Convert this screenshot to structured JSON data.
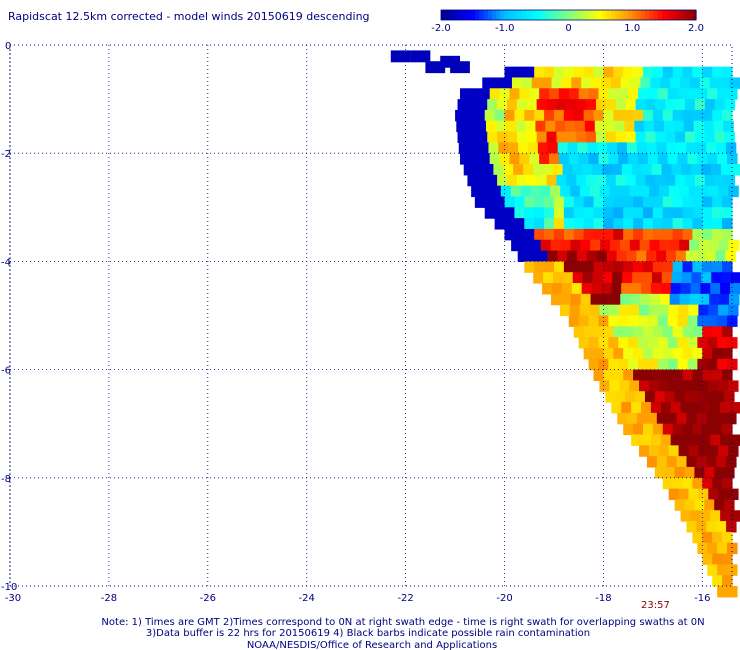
{
  "chart_data": {
    "type": "heatmap",
    "title": "Rapidscat 12.5km corrected - model winds 20150619 descending",
    "colorbar": {
      "min": -2.0,
      "max": 2.0,
      "ticks": [
        {
          "value": -2.0,
          "label": "-2.0"
        },
        {
          "value": -1.0,
          "label": "-1.0"
        },
        {
          "value": 0,
          "label": "0"
        },
        {
          "value": 1.0,
          "label": "1.0"
        },
        {
          "value": 2.0,
          "label": "2.0"
        }
      ],
      "colors": [
        "#00008b",
        "#0000ff",
        "#00bfff",
        "#00ffff",
        "#7fff7f",
        "#ffff00",
        "#ff8c00",
        "#ff0000",
        "#8b0000"
      ]
    },
    "xlim": [
      -30,
      -15.4
    ],
    "ylim": [
      -10,
      0
    ],
    "x_ticks": [
      {
        "value": -30,
        "label": "-30"
      },
      {
        "value": -28,
        "label": "-28"
      },
      {
        "value": -26,
        "label": "-26"
      },
      {
        "value": -24,
        "label": "-24"
      },
      {
        "value": -22,
        "label": "-22"
      },
      {
        "value": -20,
        "label": "-20"
      },
      {
        "value": -18,
        "label": "-18"
      },
      {
        "value": -16,
        "label": "-16"
      }
    ],
    "y_ticks": [
      {
        "value": 0,
        "label": "0"
      },
      {
        "value": -2,
        "label": "-2"
      },
      {
        "value": -4,
        "label": "-4"
      },
      {
        "value": -6,
        "label": "-6"
      },
      {
        "value": -8,
        "label": "-8"
      },
      {
        "value": -10,
        "label": "-10"
      }
    ],
    "grid": true,
    "annotations": {
      "time_label": "23:57",
      "notes": [
        "Note: 1) Times are GMT 2)Times correspond to 0N at right swath edge - time is right swath for overlapping swaths at 0N",
        "3)Data buffer is 22 hrs for 20150619 4) Black barbs indicate possible rain contamination",
        "NOAA/NESDIS/Office of Research and Applications"
      ]
    },
    "swath": {
      "cell_size_deg": 0.2,
      "west_boundary": [
        {
          "lat": -0.4,
          "lon": -20.0
        },
        {
          "lat": -0.8,
          "lon": -20.9
        },
        {
          "lat": -1.2,
          "lon": -21.0
        },
        {
          "lat": -2.0,
          "lon": -20.9
        },
        {
          "lat": -2.8,
          "lon": -20.6
        },
        {
          "lat": -3.4,
          "lon": -20.0
        },
        {
          "lat": -4.0,
          "lon": -19.6
        },
        {
          "lat": -5.0,
          "lon": -18.7
        },
        {
          "lat": -6.0,
          "lon": -18.2
        },
        {
          "lat": -7.0,
          "lon": -17.6
        },
        {
          "lat": -8.0,
          "lon": -16.8
        },
        {
          "lat": -9.0,
          "lon": -16.2
        },
        {
          "lat": -10.0,
          "lon": -15.7
        }
      ],
      "fragment_top": [
        {
          "lat": -0.1,
          "lon": -22.3
        },
        {
          "lat": -0.1,
          "lon": -21.9
        },
        {
          "lat": -0.2,
          "lon": -21.3
        },
        {
          "lat": -0.3,
          "lon": -21.1
        },
        {
          "lat": -0.3,
          "lon": -21.6
        }
      ],
      "east_edge_lon": -15.4,
      "regions": [
        {
          "lat_min": -0.4,
          "lat_max": -2.4,
          "lon_min": -20.2,
          "lon_max": -17.0,
          "value": 0.6
        },
        {
          "lat_min": -0.8,
          "lat_max": -2.0,
          "lon_min": -19.4,
          "lon_max": -18.2,
          "value": 1.3
        },
        {
          "lat_min": -0.4,
          "lat_max": -1.6,
          "lon_min": -17.4,
          "lon_max": -15.4,
          "value": -0.6
        },
        {
          "lat_min": -1.6,
          "lat_max": -3.4,
          "lon_min": -19.0,
          "lon_max": -15.4,
          "value": -0.7
        },
        {
          "lat_min": -2.6,
          "lat_max": -3.4,
          "lon_min": -20.6,
          "lon_max": -19.2,
          "value": -0.4
        },
        {
          "lat_min": -3.4,
          "lat_max": -4.6,
          "lon_min": -20.0,
          "lon_max": -16.4,
          "value": 1.4
        },
        {
          "lat_min": -3.8,
          "lat_max": -5.0,
          "lon_min": -19.2,
          "lon_max": -17.8,
          "value": 1.9
        },
        {
          "lat_min": -4.0,
          "lat_max": -5.2,
          "lon_min": -16.8,
          "lon_max": -15.4,
          "value": -1.2
        },
        {
          "lat_min": -4.8,
          "lat_max": -5.8,
          "lon_min": -18.4,
          "lon_max": -16.2,
          "value": 0.3
        },
        {
          "lat_min": -5.2,
          "lat_max": -6.0,
          "lon_min": -16.2,
          "lon_max": -15.4,
          "value": 1.8
        },
        {
          "lat_min": -6.0,
          "lat_max": -10.0,
          "lon_min": -17.8,
          "lon_max": -15.4,
          "value": 2.0
        }
      ]
    }
  }
}
